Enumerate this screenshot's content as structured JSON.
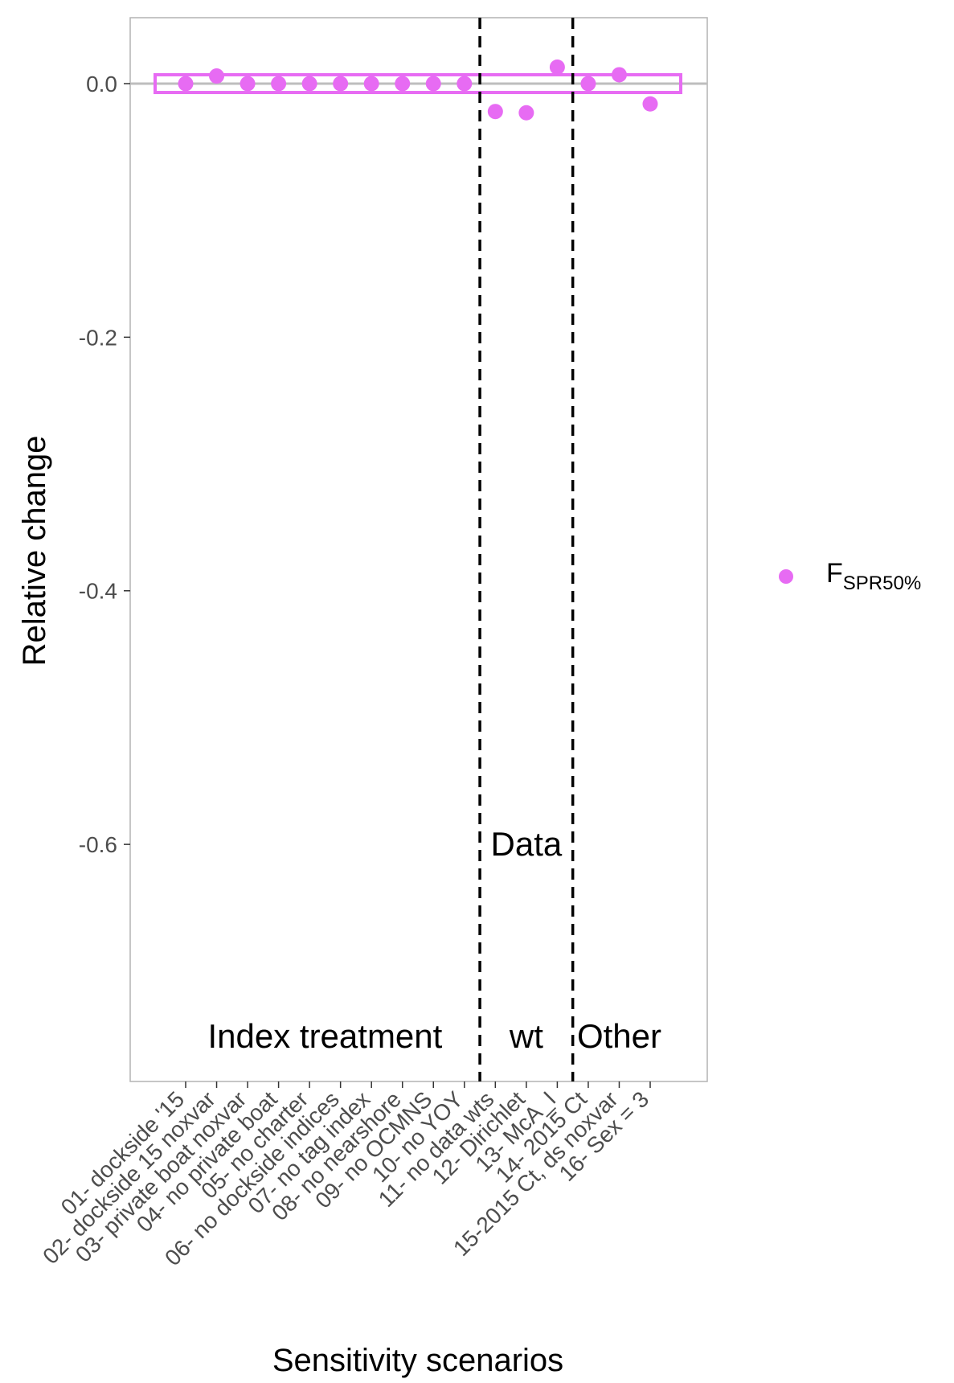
{
  "chart_data": {
    "type": "scatter",
    "title": "",
    "xlabel": "Sensitivity scenarios",
    "ylabel": "Relative change",
    "ylim": [
      -0.787,
      0.052
    ],
    "yticks": [
      0.0,
      -0.2,
      -0.4,
      -0.6
    ],
    "ytick_labels": [
      "0.0",
      "-0.2",
      "-0.4",
      "-0.6"
    ],
    "grid": false,
    "categories": [
      "01- dockside '15",
      "02- dockside 15 noxvar",
      "03- private boat noxvar",
      "04- no private boat",
      "05- no charter",
      "06- no dockside indices",
      "07- no tag index",
      "08- no nearshore",
      "09- no OCMNS",
      "10- no YOY",
      "11- no data wts",
      "12- Dirichlet",
      "13- McA_I",
      "14- 2015 Ct",
      "15-2015 Ct, ds noxvar",
      "16- Sex = 3"
    ],
    "series": [
      {
        "name": "F",
        "name_sub": "SPR50%",
        "color": "#e76bf3",
        "values": [
          0.0,
          0.006,
          0.0,
          0.0,
          0.0,
          0.0,
          0.0,
          0.0,
          0.0,
          0.0,
          -0.022,
          -0.023,
          0.013,
          0.0,
          0.007,
          -0.016
        ]
      }
    ],
    "reference_line": {
      "y": 0.0,
      "color": "#bebebe"
    },
    "box": {
      "from_category": 1,
      "to_category": 16,
      "ymin": -0.007,
      "ymax": 0.007,
      "color": "#e76bf3"
    },
    "dividers": [
      10.5,
      13.5
    ],
    "regions": [
      {
        "label": "Index treatment",
        "from": 1,
        "to": 10
      },
      {
        "label": "Data",
        "label2": "wt",
        "from": 11,
        "to": 13
      },
      {
        "label": "Other",
        "from": 14,
        "to": 16
      }
    ],
    "legend": {
      "position": "right"
    }
  }
}
